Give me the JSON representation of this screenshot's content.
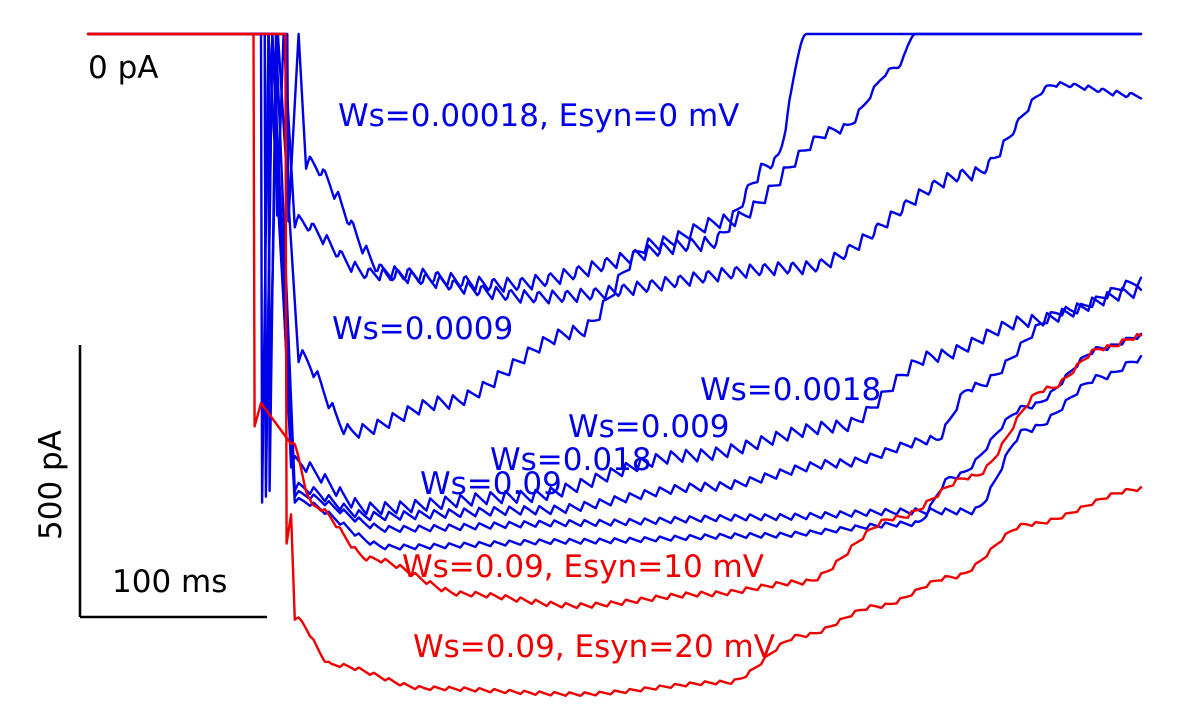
{
  "chart_data": {
    "type": "line",
    "title": "",
    "xlabel": "",
    "ylabel": "",
    "zero_label": "0 pA",
    "scale_bar": {
      "x_label": "100 ms",
      "y_label": "500 pA",
      "x_ms": 100,
      "y_pa": 500
    },
    "colors": {
      "blue": "#0000e6",
      "red": "#ee0000",
      "axis": "#000000"
    },
    "xlim": [
      0,
      560
    ],
    "ylim": [
      -1120,
      0
    ],
    "series": [
      {
        "name": "Ws=0.00018, Esyn=0 mV",
        "color": "blue",
        "onset": 106,
        "peak": -320,
        "dip": 0,
        "dip_t": 112,
        "plateau": [
          [
            116,
            -230
          ],
          [
            160,
            -420
          ],
          [
            220,
            -440
          ],
          [
            330,
            -370
          ],
          [
            365,
            -230
          ],
          [
            382,
            0
          ],
          [
            560,
            0
          ]
        ],
        "osc": 24,
        "period": 7.5
      },
      {
        "name": "",
        "color": "blue",
        "onset": 100,
        "peak": -310,
        "dip": 0,
        "dip_t": 104,
        "plateau": [
          [
            110,
            -330
          ],
          [
            150,
            -420
          ],
          [
            240,
            -460
          ],
          [
            380,
            -410
          ],
          [
            470,
            -250
          ],
          [
            515,
            -90
          ],
          [
            560,
            -110
          ]
        ],
        "osc": 22,
        "period": 7.5
      },
      {
        "name": "Ws=0.0009",
        "color": "blue",
        "onset": 96,
        "peak": -640,
        "dip": 0,
        "dip_t": 101,
        "plateau": [
          [
            112,
            -560
          ],
          [
            140,
            -690
          ],
          [
            190,
            -640
          ],
          [
            260,
            -520
          ],
          [
            300,
            -370
          ],
          [
            340,
            -330
          ],
          [
            400,
            -170
          ],
          [
            430,
            -60
          ],
          [
            440,
            0
          ],
          [
            560,
            0
          ]
        ],
        "osc": 22,
        "period": 8
      },
      {
        "name": "Ws=0.0018",
        "color": "blue",
        "onset": 94,
        "peak": -760,
        "dip": 0,
        "dip_t": 98,
        "plateau": [
          [
            108,
            -740
          ],
          [
            150,
            -820
          ],
          [
            230,
            -800
          ],
          [
            320,
            -730
          ],
          [
            400,
            -680
          ],
          [
            450,
            -560
          ],
          [
            500,
            -500
          ],
          [
            560,
            -450
          ]
        ],
        "osc": 20,
        "period": 8
      },
      {
        "name": "Ws=0.009",
        "color": "blue",
        "onset": 96,
        "peak": -780,
        "dip": 0,
        "dip_t": 100,
        "plateau": [
          [
            110,
            -780
          ],
          [
            150,
            -830
          ],
          [
            240,
            -820
          ],
          [
            330,
            -780
          ],
          [
            400,
            -740
          ],
          [
            450,
            -700
          ],
          [
            470,
            -610
          ],
          [
            520,
            -480
          ],
          [
            560,
            -430
          ]
        ],
        "osc": 14,
        "period": 8
      },
      {
        "name": "Ws=0.018",
        "color": "blue",
        "onset": 94,
        "peak": -790,
        "dip": 0,
        "dip_t": 98,
        "plateau": [
          [
            110,
            -790
          ],
          [
            160,
            -850
          ],
          [
            260,
            -840
          ],
          [
            360,
            -830
          ],
          [
            440,
            -820
          ],
          [
            470,
            -820
          ],
          [
            500,
            -680
          ],
          [
            540,
            -590
          ],
          [
            560,
            -560
          ]
        ],
        "osc": 10,
        "period": 8
      },
      {
        "name": "Ws=0.09",
        "color": "blue",
        "onset": 92,
        "peak": -800,
        "dip": 0,
        "dip_t": 96,
        "plateau": [
          [
            110,
            -800
          ],
          [
            160,
            -880
          ],
          [
            260,
            -870
          ],
          [
            360,
            -860
          ],
          [
            440,
            -840
          ],
          [
            460,
            -760
          ],
          [
            500,
            -640
          ],
          [
            540,
            -540
          ],
          [
            560,
            -520
          ]
        ],
        "osc": 8,
        "period": 8
      },
      {
        "name": "Ws=0.09, Esyn=10 mV",
        "color": "red",
        "onset": 88,
        "peak": -670,
        "dip": -630,
        "dip_t": 92,
        "plateau": [
          [
            108,
            -700
          ],
          [
            120,
            -810
          ],
          [
            150,
            -900
          ],
          [
            200,
            -960
          ],
          [
            260,
            -980
          ],
          [
            330,
            -960
          ],
          [
            380,
            -940
          ],
          [
            430,
            -830
          ],
          [
            470,
            -760
          ],
          [
            510,
            -610
          ],
          [
            540,
            -540
          ],
          [
            560,
            -520
          ]
        ],
        "osc": 8,
        "period": 8
      },
      {
        "name": "Ws=0.09, Esyn=20 mV",
        "color": "red",
        "onset": 105,
        "peak": -870,
        "dip": -820,
        "dip_t": 108,
        "plateau": [
          [
            110,
            -1000
          ],
          [
            130,
            -1080
          ],
          [
            180,
            -1120
          ],
          [
            260,
            -1130
          ],
          [
            340,
            -1110
          ],
          [
            380,
            -1030
          ],
          [
            420,
            -980
          ],
          [
            460,
            -930
          ],
          [
            500,
            -840
          ],
          [
            560,
            -780
          ]
        ],
        "osc": 6,
        "period": 8
      }
    ]
  },
  "labels": [
    {
      "text": "Ws=0.00018, Esyn=0 mV",
      "color": "blue"
    },
    {
      "text": "Ws=0.0009",
      "color": "blue"
    },
    {
      "text": "Ws=0.0018",
      "color": "blue"
    },
    {
      "text": "Ws=0.009",
      "color": "blue"
    },
    {
      "text": "Ws=0.018",
      "color": "blue"
    },
    {
      "text": "Ws=0.09",
      "color": "blue"
    },
    {
      "text": "Ws=0.09, Esyn=10 mV",
      "color": "red"
    },
    {
      "text": "Ws=0.09, Esyn=20 mV",
      "color": "red"
    }
  ]
}
